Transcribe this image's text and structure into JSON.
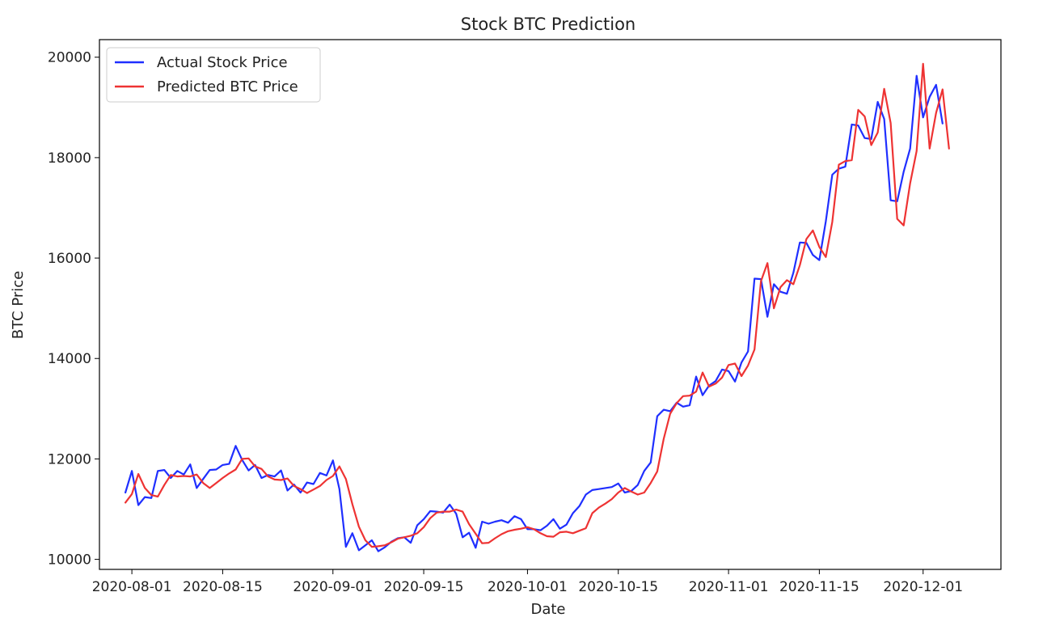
{
  "chart_data": {
    "type": "line",
    "title": "Stock BTC Prediction",
    "xlabel": "Date",
    "ylabel": "BTC Price",
    "ylim": [
      9800,
      20350
    ],
    "xlim": [
      "2020-07-27",
      "2020-12-13"
    ],
    "x_ticks": [
      "2020-08-01",
      "2020-08-15",
      "2020-09-01",
      "2020-09-15",
      "2020-10-01",
      "2020-10-15",
      "2020-11-01",
      "2020-11-15",
      "2020-12-01"
    ],
    "y_ticks": [
      10000,
      12000,
      14000,
      16000,
      18000,
      20000
    ],
    "grid": false,
    "legend_position": "upper-left",
    "start_date": "2020-07-31",
    "series": [
      {
        "name": "Actual Stock Price",
        "color": "#1f2fff",
        "values": [
          11330,
          11760,
          11080,
          11240,
          11220,
          11760,
          11780,
          11620,
          11760,
          11690,
          11890,
          11420,
          11600,
          11780,
          11790,
          11880,
          11900,
          12260,
          11980,
          11770,
          11880,
          11620,
          11680,
          11650,
          11770,
          11370,
          11490,
          11330,
          11530,
          11500,
          11720,
          11670,
          11970,
          11400,
          10250,
          10520,
          10180,
          10280,
          10380,
          10160,
          10240,
          10350,
          10420,
          10440,
          10330,
          10680,
          10800,
          10960,
          10950,
          10930,
          11090,
          10910,
          10440,
          10530,
          10230,
          10750,
          10710,
          10750,
          10780,
          10730,
          10860,
          10800,
          10600,
          10600,
          10580,
          10670,
          10800,
          10610,
          10690,
          10920,
          11060,
          11290,
          11380,
          11400,
          11420,
          11440,
          11510,
          11330,
          11360,
          11480,
          11760,
          11930,
          12850,
          12980,
          12950,
          13120,
          13040,
          13070,
          13640,
          13270,
          13460,
          13550,
          13780,
          13750,
          13540,
          13920,
          14140,
          15590,
          15580,
          14830,
          15480,
          15330,
          15290,
          15710,
          16310,
          16300,
          16060,
          15960,
          16730,
          17660,
          17780,
          17820,
          18660,
          18640,
          18390,
          18370,
          19110,
          18770,
          17150,
          17130,
          17720,
          18180,
          19630,
          18800,
          19210,
          19450,
          18680
        ]
      },
      {
        "name": "Predicted BTC Price",
        "color": "#ee3333",
        "values": [
          11130,
          11300,
          11700,
          11420,
          11280,
          11250,
          11480,
          11680,
          11650,
          11660,
          11650,
          11690,
          11520,
          11420,
          11520,
          11620,
          11710,
          11790,
          12000,
          12010,
          11850,
          11800,
          11650,
          11590,
          11580,
          11610,
          11460,
          11400,
          11320,
          11390,
          11460,
          11580,
          11660,
          11850,
          11600,
          11100,
          10650,
          10380,
          10250,
          10260,
          10280,
          10340,
          10410,
          10440,
          10470,
          10520,
          10640,
          10820,
          10930,
          10950,
          10950,
          10990,
          10950,
          10700,
          10510,
          10320,
          10330,
          10420,
          10500,
          10560,
          10590,
          10610,
          10640,
          10600,
          10520,
          10460,
          10450,
          10540,
          10550,
          10520,
          10570,
          10620,
          10920,
          11030,
          11110,
          11200,
          11330,
          11420,
          11350,
          11290,
          11330,
          11520,
          11750,
          12400,
          12900,
          13110,
          13250,
          13260,
          13340,
          13720,
          13440,
          13500,
          13620,
          13870,
          13900,
          13650,
          13860,
          14180,
          15540,
          15900,
          15000,
          15420,
          15560,
          15480,
          15860,
          16380,
          16550,
          16220,
          16020,
          16720,
          17860,
          17930,
          17950,
          18950,
          18820,
          18250,
          18500,
          19370,
          18690,
          16780,
          16650,
          17490,
          18130,
          19870,
          18180,
          18890,
          19360,
          18180
        ]
      }
    ]
  }
}
